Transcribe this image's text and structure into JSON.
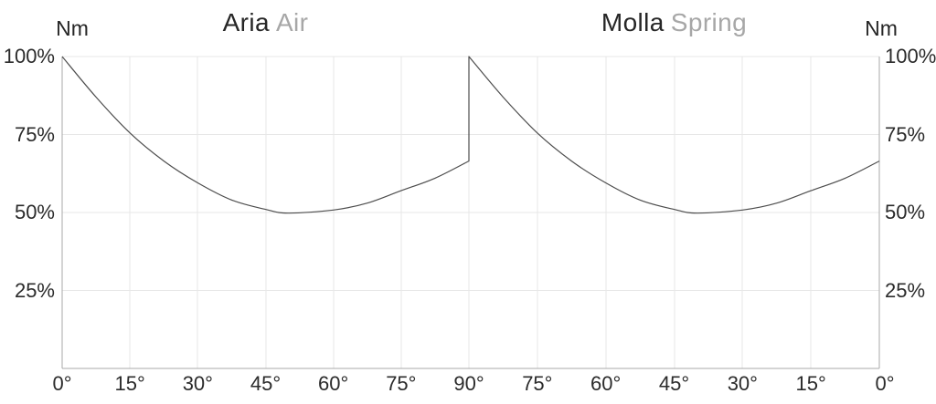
{
  "page": {
    "background": "#ffffff"
  },
  "colors": {
    "title_primary": "#262626",
    "title_secondary": "#a7a7a7",
    "tick_text": "#2b2b2b",
    "gridline": "#e7e7e7",
    "axis_line": "#a9a9a9",
    "curve": "#4d4d4d"
  },
  "chart_data": [
    {
      "type": "line",
      "title_primary": "Aria",
      "title_secondary": "Air",
      "y_unit_label": "Nm",
      "x_axis_reversed": false,
      "x_range_deg": [
        0,
        90
      ],
      "ylim_pct": [
        0,
        100
      ],
      "grid": true,
      "x_ticks": [
        "0°",
        "15°",
        "30°",
        "45°",
        "60°",
        "75°",
        "90°"
      ],
      "y_ticks": [
        "100%",
        "75%",
        "50%",
        "25%"
      ],
      "y_tick_values": [
        100,
        75,
        50,
        25
      ],
      "points": {
        "x_deg": [
          0,
          7.5,
          15,
          22.5,
          30,
          37.5,
          45,
          50,
          60,
          67.5,
          75,
          82.5,
          90
        ],
        "y_pct": [
          100,
          87,
          75.5,
          66.5,
          59.5,
          54,
          51,
          49.8,
          50.8,
          53,
          57,
          61,
          66.5
        ]
      }
    },
    {
      "type": "line",
      "title_primary": "Molla",
      "title_secondary": "Spring",
      "y_unit_label": "Nm",
      "x_axis_reversed": true,
      "x_range_deg": [
        90,
        0
      ],
      "ylim_pct": [
        0,
        100
      ],
      "grid": true,
      "x_ticks": [
        "90°",
        "75°",
        "60°",
        "45°",
        "30°",
        "15°",
        "0°"
      ],
      "y_ticks": [
        "100%",
        "75%",
        "50%",
        "25%"
      ],
      "y_tick_values": [
        100,
        75,
        50,
        25
      ],
      "points": {
        "x_deg": [
          90,
          82.5,
          75,
          67.5,
          60,
          52.5,
          45,
          40,
          30,
          22.5,
          15,
          7.5,
          0
        ],
        "y_pct": [
          100,
          87,
          75.5,
          66.5,
          59.5,
          54,
          51,
          49.8,
          50.8,
          53,
          57,
          61,
          66.5
        ]
      }
    }
  ]
}
